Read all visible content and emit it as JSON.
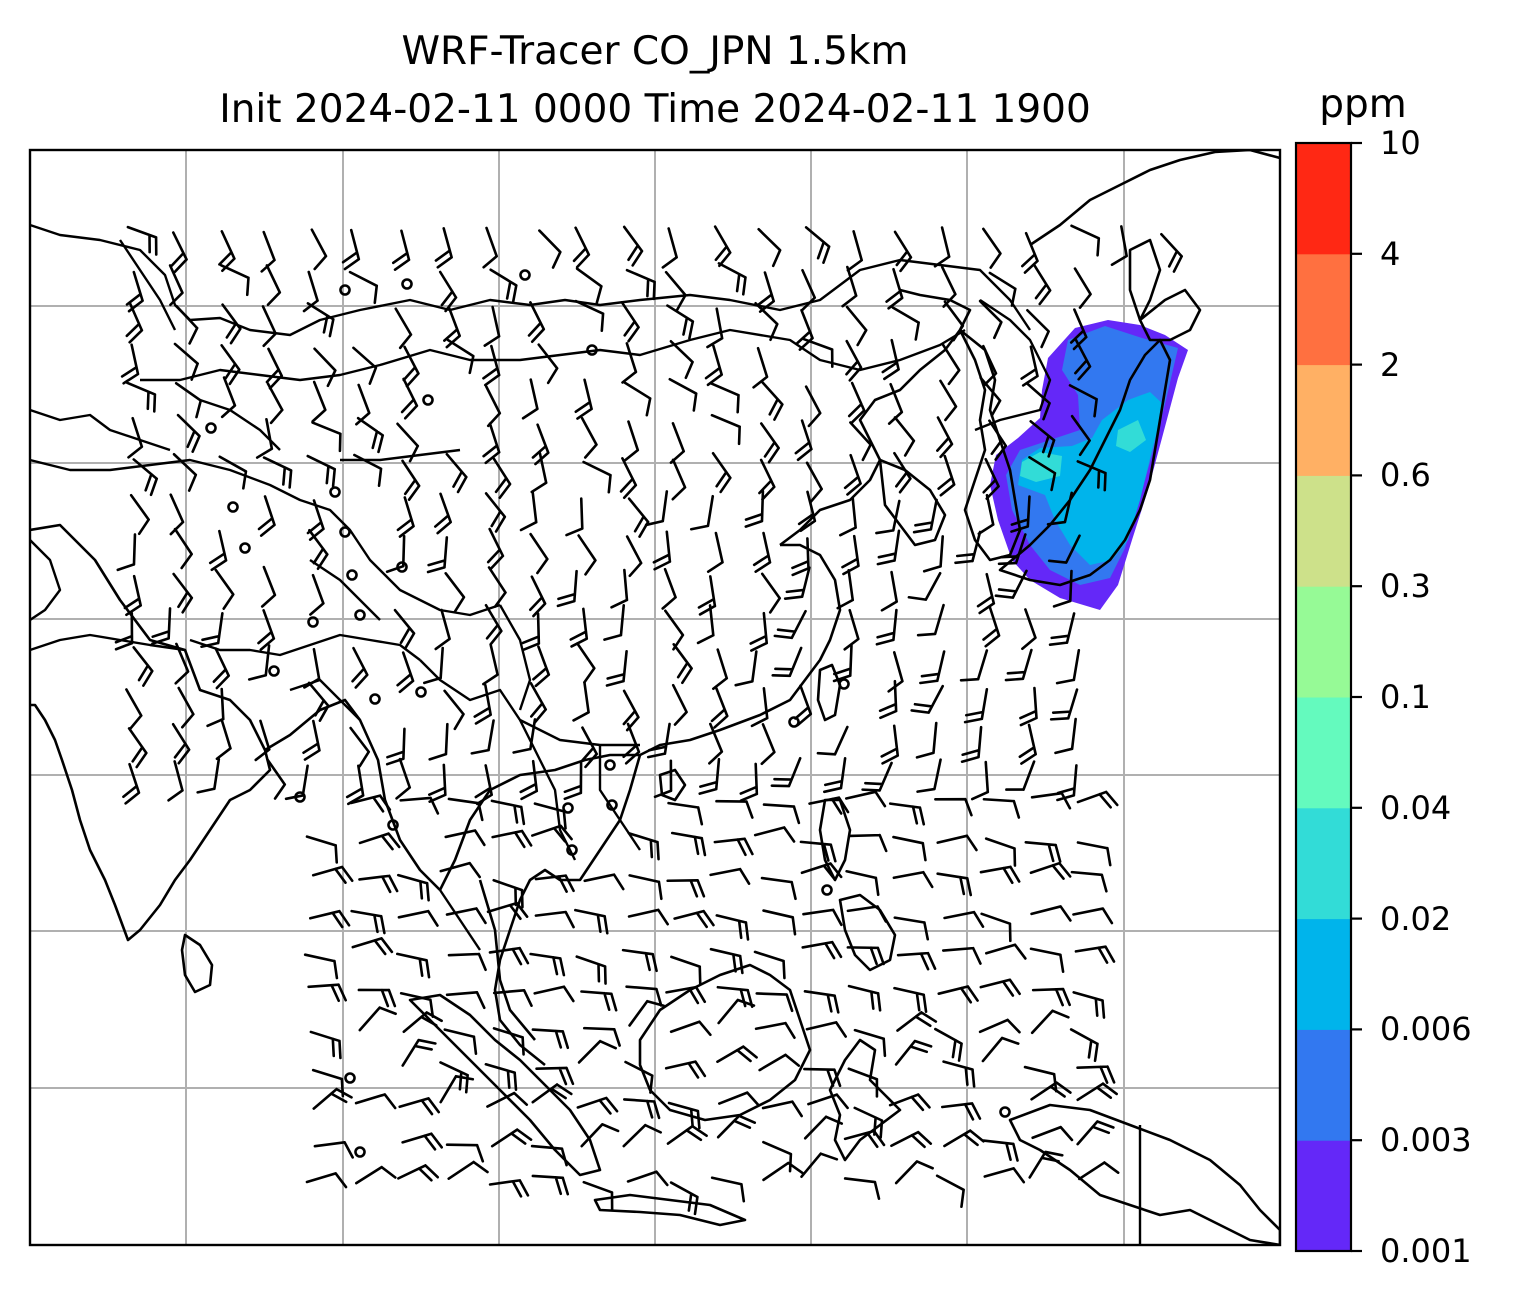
{
  "title": {
    "line1": "WRF-Tracer CO_JPN 1.5km",
    "line2": "Init 2024-02-11 0000 Time 2024-02-11 1900"
  },
  "colorbar": {
    "unit": "ppm",
    "levels": [
      "0.001",
      "0.003",
      "0.006",
      "0.02",
      "0.04",
      "0.1",
      "0.3",
      "0.6",
      "2",
      "4",
      "10"
    ],
    "colors": [
      "#6428f8",
      "#3278f0",
      "#00b4eb",
      "#32dcd7",
      "#64fabe",
      "#96fa96",
      "#cde18a",
      "#ffb064",
      "#ff7040",
      "#ff2814"
    ]
  },
  "map": {
    "region": "East and Southeast Asia",
    "background": "#ffffff",
    "gridline_color": "#b0b0b0",
    "coastline_color": "#000000",
    "features": [
      "coastlines",
      "country-borders",
      "gridlines",
      "wind-barbs",
      "co-tracer-concentration"
    ],
    "tracer_levels_present": [
      "0.001",
      "0.003",
      "0.006",
      "0.02"
    ]
  }
}
